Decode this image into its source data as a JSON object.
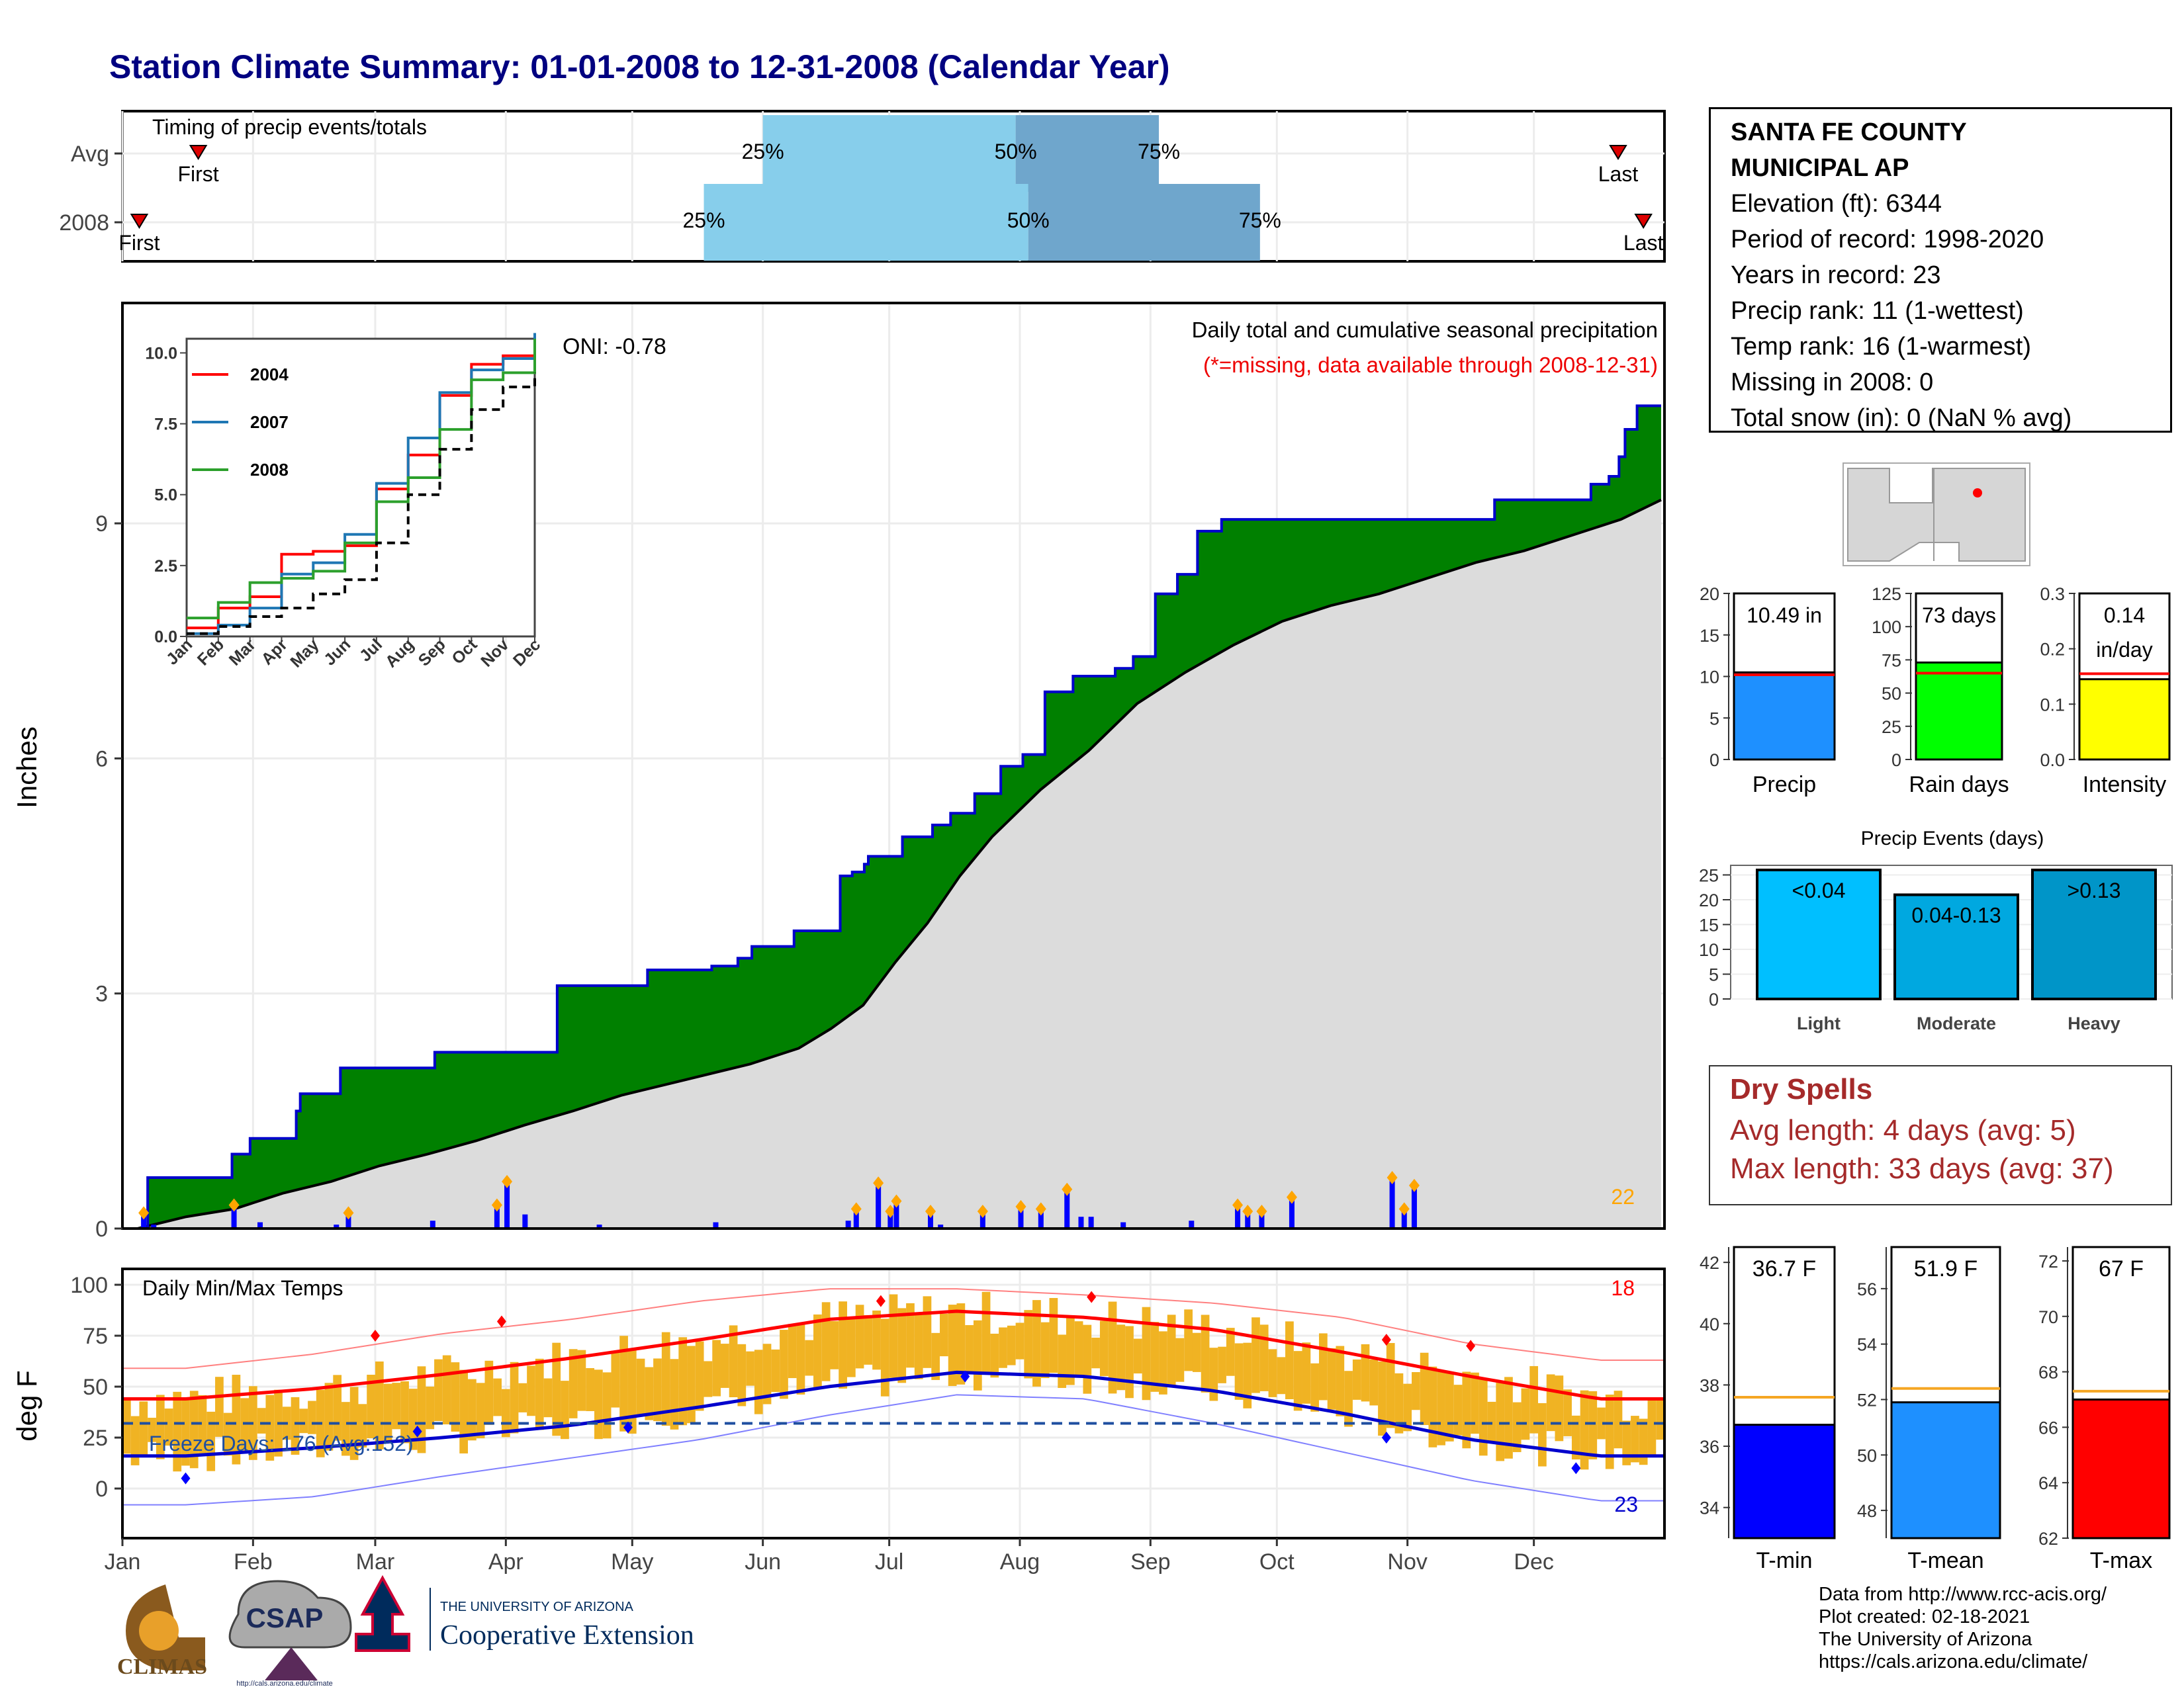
{
  "title": "Station Climate Summary: 01-01-2008 to 12-31-2008 (Calendar Year)",
  "station": {
    "name_line1": "SANTA FE COUNTY",
    "name_line2": "MUNICIPAL AP",
    "elevation": "Elevation (ft): 6344",
    "period": "Period of record: 1998-2020",
    "years": "Years in record: 23",
    "precip_rank": "Precip rank: 11 (1-wettest)",
    "temp_rank": "Temp rank: 16 (1-warmest)",
    "missing": "Missing in 2008: 0",
    "snow": "Total snow (in): 0 (NaN % avg)"
  },
  "dry_spells": {
    "title": "Dry Spells",
    "avg": "Avg length: 4 days (avg: 5)",
    "max": "Max length: 33 days (avg: 37)"
  },
  "footer": {
    "line1": "Data from http://www.rcc-acis.org/",
    "line2": "Plot created: 02-18-2021",
    "line3": "The University of Arizona",
    "line4": "https://cals.arizona.edu/climate/"
  },
  "logos": {
    "climas": "CLIMAS",
    "csap": "CSAP",
    "csap_url": "http://cals.arizona.edu/climate",
    "ua_small": "THE UNIVERSITY OF ARIZONA",
    "ua_big": "Cooperative Extension"
  },
  "colors": {
    "title": "#000080",
    "green": "#008000",
    "blue_line": "#0000cc",
    "gray_fill": "#dcdcdc",
    "light_blue": "#87ceeb",
    "steel_blue": "#6fa6cc",
    "orange": "#f0b323",
    "red": "#ff0000"
  },
  "chart_data": [
    {
      "id": "timing",
      "type": "bar",
      "title": "Timing of precip events/totals",
      "rows": [
        {
          "label": "Avg",
          "first": "Jan 19",
          "p25": "Jun 1",
          "p50": "Jul 31",
          "p75": "Sep 3",
          "last": "Dec 21"
        },
        {
          "label": "2008",
          "first": "Jan 5",
          "p25": "May 18",
          "p50": "Aug 3",
          "p75": "Sep 27",
          "last": "Dec 27"
        }
      ],
      "labels": {
        "first": "First",
        "last": "Last",
        "p25": "25%",
        "p50": "50%",
        "p75": "75%"
      }
    },
    {
      "id": "cumulative",
      "type": "area",
      "title": "Daily total and cumulative seasonal precipitation",
      "subtitle": "(*=missing, data available through 2008-12-31)",
      "ylabel": "Inches",
      "ylim": [
        0,
        11.5
      ],
      "yticks": [
        0,
        3,
        6,
        9
      ],
      "oni": "ONI: -0.78",
      "series_2008_cumulative": [
        [
          0,
          0.0
        ],
        [
          5,
          0.65
        ],
        [
          46,
          0.65
        ],
        [
          47,
          0.95
        ],
        [
          55,
          0.95
        ],
        [
          56,
          1.15
        ],
        [
          78,
          1.15
        ],
        [
          79,
          1.5
        ],
        [
          81,
          1.72
        ],
        [
          100,
          1.72
        ],
        [
          101,
          2.05
        ],
        [
          147,
          2.05
        ],
        [
          148,
          2.25
        ],
        [
          208,
          2.25
        ],
        [
          209,
          3.1
        ],
        [
          253,
          3.1
        ],
        [
          254,
          3.3
        ],
        [
          285,
          3.3
        ],
        [
          286,
          3.35
        ],
        [
          298,
          3.35
        ],
        [
          299,
          3.45
        ],
        [
          305,
          3.45
        ],
        [
          306,
          3.6
        ],
        [
          326,
          3.6
        ],
        [
          327,
          3.8
        ],
        [
          349,
          3.8
        ],
        [
          350,
          4.5
        ],
        [
          356,
          4.55
        ],
        [
          362,
          4.65
        ],
        [
          364,
          4.75
        ],
        [
          380,
          4.75
        ],
        [
          381,
          5.0
        ],
        [
          395,
          5.0
        ],
        [
          396,
          5.15
        ],
        [
          405,
          5.3
        ],
        [
          417,
          5.55
        ],
        [
          429,
          5.55
        ],
        [
          430,
          5.9
        ],
        [
          440,
          5.9
        ],
        [
          441,
          6.05
        ],
        [
          451,
          6.05
        ],
        [
          452,
          6.85
        ],
        [
          465,
          6.85
        ],
        [
          466,
          7.05
        ],
        [
          486,
          7.05
        ],
        [
          487,
          7.15
        ],
        [
          495,
          7.15
        ],
        [
          496,
          7.3
        ],
        [
          505,
          7.3
        ],
        [
          507,
          8.1
        ],
        [
          517,
          8.1
        ],
        [
          518,
          8.35
        ],
        [
          527,
          8.35
        ],
        [
          528,
          8.9
        ],
        [
          539,
          8.9
        ],
        [
          540,
          9.05
        ],
        [
          586,
          9.05
        ],
        [
          587,
          9.05
        ],
        [
          675,
          9.05
        ],
        [
          676,
          9.3
        ],
        [
          723,
          9.3
        ],
        [
          724,
          9.5
        ],
        [
          730,
          9.5
        ],
        [
          733,
          9.6
        ],
        [
          738,
          9.85
        ],
        [
          741,
          10.2
        ],
        [
          746,
          10.2
        ],
        [
          747,
          10.5
        ],
        [
          759,
          10.5
        ]
      ],
      "series_avg_cumulative": [
        [
          0,
          0.0
        ],
        [
          30,
          0.15
        ],
        [
          60,
          0.25
        ],
        [
          90,
          0.45
        ],
        [
          120,
          0.6
        ],
        [
          150,
          0.8
        ],
        [
          180,
          0.95
        ],
        [
          210,
          1.12
        ],
        [
          240,
          1.32
        ],
        [
          270,
          1.5
        ],
        [
          300,
          1.7
        ],
        [
          330,
          1.85
        ],
        [
          360,
          2.0
        ],
        [
          380,
          2.1
        ],
        [
          410,
          2.3
        ],
        [
          430,
          2.55
        ],
        [
          450,
          2.85
        ],
        [
          470,
          3.4
        ],
        [
          490,
          3.9
        ],
        [
          510,
          4.5
        ],
        [
          530,
          5.0
        ],
        [
          560,
          5.6
        ],
        [
          590,
          6.1
        ],
        [
          620,
          6.7
        ],
        [
          650,
          7.1
        ],
        [
          680,
          7.45
        ],
        [
          710,
          7.75
        ],
        [
          740,
          7.95
        ],
        [
          770,
          8.1
        ],
        [
          800,
          8.3
        ],
        [
          830,
          8.5
        ],
        [
          860,
          8.65
        ],
        [
          890,
          8.85
        ],
        [
          920,
          9.05
        ],
        [
          945,
          9.3
        ]
      ],
      "daily_precip_bars": [
        [
          3,
          0.2
        ],
        [
          8,
          0.05
        ],
        [
          48,
          0.3
        ],
        [
          61,
          0.08
        ],
        [
          99,
          0.05
        ],
        [
          105,
          0.2
        ],
        [
          147,
          0.1
        ],
        [
          179,
          0.3
        ],
        [
          184,
          0.6
        ],
        [
          193,
          0.18
        ],
        [
          230,
          0.05
        ],
        [
          288,
          0.08
        ],
        [
          354,
          0.1
        ],
        [
          358,
          0.25
        ],
        [
          369,
          0.58
        ],
        [
          375,
          0.22
        ],
        [
          378,
          0.35
        ],
        [
          395,
          0.22
        ],
        [
          400,
          0.05
        ],
        [
          421,
          0.22
        ],
        [
          440,
          0.28
        ],
        [
          450,
          0.25
        ],
        [
          463,
          0.5
        ],
        [
          470,
          0.15
        ],
        [
          475,
          0.15
        ],
        [
          491,
          0.08
        ],
        [
          525,
          0.1
        ],
        [
          548,
          0.3
        ],
        [
          553,
          0.22
        ],
        [
          560,
          0.22
        ],
        [
          575,
          0.4
        ],
        [
          625,
          0.65
        ],
        [
          631,
          0.25
        ],
        [
          636,
          0.55
        ]
      ]
    },
    {
      "id": "inset",
      "type": "line",
      "ylim": [
        0,
        10.5
      ],
      "yticks": [
        "0.0",
        "2.5",
        "5.0",
        "7.5",
        "10.0"
      ],
      "categories": [
        "Jan",
        "Feb",
        "Mar",
        "Apr",
        "May",
        "Jun",
        "Jul",
        "Aug",
        "Sep",
        "Oct",
        "Nov",
        "Dec"
      ],
      "series": [
        {
          "name": "2004",
          "color": "#ff0000",
          "values": [
            0.3,
            1.0,
            1.4,
            2.9,
            3.0,
            3.2,
            5.2,
            6.4,
            8.5,
            9.6,
            9.9,
            9.8
          ]
        },
        {
          "name": "2007",
          "color": "#1f77b4",
          "values": [
            0.1,
            0.4,
            1.0,
            2.2,
            2.6,
            3.6,
            5.4,
            7.0,
            8.6,
            9.4,
            9.8,
            10.7
          ]
        },
        {
          "name": "2008",
          "color": "#2ca02c",
          "values": [
            0.65,
            1.2,
            1.9,
            2.05,
            2.3,
            3.3,
            4.75,
            5.6,
            7.3,
            9.05,
            9.3,
            10.5
          ]
        },
        {
          "name": "avg",
          "color": "#000000",
          "values": [
            0.1,
            0.35,
            0.7,
            1.0,
            1.5,
            2.0,
            3.3,
            5.0,
            6.6,
            8.0,
            8.8,
            9.3
          ]
        }
      ]
    },
    {
      "id": "summary_bars",
      "type": "bar",
      "panels": [
        {
          "category": "Precip",
          "value": 10.49,
          "avg": 10.2,
          "label": "10.49 in",
          "ylim": [
            0,
            20
          ],
          "yticks": [
            "0",
            "5",
            "10",
            "15",
            "20"
          ],
          "color": "#1e90ff"
        },
        {
          "category": "Rain days",
          "value": 73,
          "avg": 65,
          "label": "73 days",
          "ylim": [
            0,
            125
          ],
          "yticks": [
            "0",
            "25",
            "50",
            "75",
            "100",
            "125"
          ],
          "color": "#00ff00"
        },
        {
          "category": "Intensity",
          "value": 0.145,
          "avg": 0.155,
          "label_line1": "0.14",
          "label_line2": "in/day",
          "ylim": [
            0,
            0.3
          ],
          "yticks": [
            "0.0",
            "0.1",
            "0.2",
            "0.3"
          ],
          "color": "#ffff00"
        }
      ]
    },
    {
      "id": "events",
      "type": "bar",
      "title": "Precip Events (days)",
      "categories": [
        "Light",
        "Moderate",
        "Heavy"
      ],
      "values": [
        26,
        21,
        26
      ],
      "bar_labels": [
        "<0.04",
        "0.04-0.13",
        ">0.13"
      ],
      "ylim": [
        0,
        26
      ],
      "yticks": [
        "0",
        "5",
        "10",
        "15",
        "20",
        "25"
      ],
      "colors": [
        "#00bfff",
        "#00a8e0",
        "#0095c8"
      ]
    },
    {
      "id": "temps",
      "type": "line",
      "title": "Daily Min/Max Temps",
      "ylabel": "deg F",
      "ylim": [
        -20,
        105
      ],
      "yticks": [
        0,
        25,
        50,
        75,
        100
      ],
      "months": [
        "Jan",
        "Feb",
        "Mar",
        "Apr",
        "May",
        "Jun",
        "Jul",
        "Aug",
        "Sep",
        "Oct",
        "Nov",
        "Dec"
      ],
      "freeze_days": "Freeze Days: 176 (Avg:152)",
      "record_highs_count": "18",
      "record_lows_count": "23",
      "avg_max_monthly": [
        44,
        49,
        56,
        64,
        73,
        83,
        87,
        84,
        78,
        67,
        55,
        44
      ],
      "avg_min_monthly": [
        16,
        20,
        25,
        31,
        40,
        50,
        57,
        55,
        48,
        37,
        24,
        16
      ],
      "record_max_monthly": [
        59,
        66,
        76,
        83,
        92,
        98,
        98,
        95,
        91,
        84,
        71,
        63
      ],
      "record_min_monthly": [
        -8,
        -4,
        6,
        15,
        24,
        36,
        46,
        44,
        32,
        18,
        4,
        -6
      ]
    },
    {
      "id": "temp_bars",
      "type": "bar",
      "panels": [
        {
          "category": "T-min",
          "value": 36.7,
          "avg": 37.6,
          "label": "36.7 F",
          "ylim": [
            33,
            42.5
          ],
          "yticks": [
            "34",
            "36",
            "38",
            "40",
            "42"
          ],
          "color": "#0000ff"
        },
        {
          "category": "T-mean",
          "value": 51.9,
          "avg": 52.4,
          "label": "51.9 F",
          "ylim": [
            47,
            57.5
          ],
          "yticks": [
            "48",
            "50",
            "52",
            "54",
            "56"
          ],
          "color": "#1e90ff"
        },
        {
          "category": "T-max",
          "value": 67.0,
          "avg": 67.3,
          "label": "67 F",
          "ylim": [
            62,
            72.5
          ],
          "yticks": [
            "62",
            "64",
            "66",
            "68",
            "70",
            "72"
          ],
          "color": "#ff0000"
        }
      ]
    }
  ]
}
